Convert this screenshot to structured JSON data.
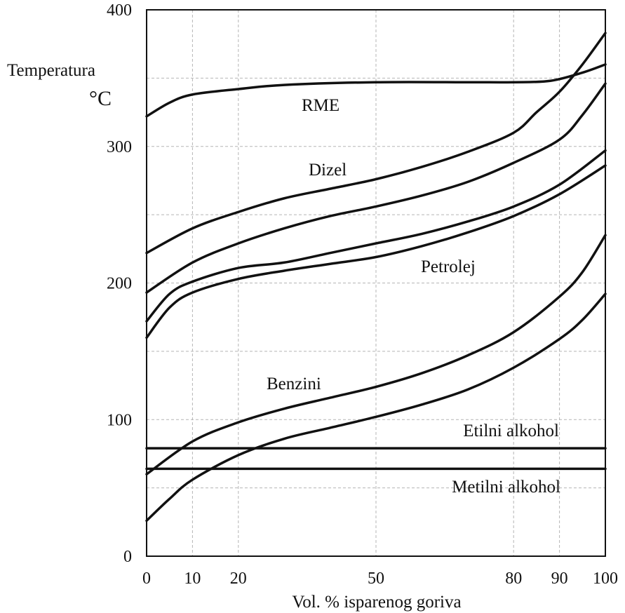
{
  "chart_data": {
    "type": "line",
    "title": "",
    "ylabel_line1": "Temperatura",
    "ylabel_line2": "°C",
    "xlabel": "Vol. % isparenog goriva",
    "xlim": [
      0,
      100
    ],
    "ylim": [
      0,
      400
    ],
    "x_ticks": [
      0,
      10,
      20,
      50,
      80,
      90,
      100
    ],
    "x_tick_labels": [
      "0",
      "10",
      "20",
      "50",
      "80",
      "90",
      "100"
    ],
    "y_ticks": [
      0,
      100,
      200,
      300,
      400
    ],
    "y_tick_labels": [
      "0",
      "100",
      "200",
      "300",
      "400"
    ],
    "grid": true,
    "x_grid": [
      10,
      20,
      50,
      80,
      90
    ],
    "y_grid": [
      50,
      100,
      150,
      200,
      250,
      300,
      350
    ],
    "series": [
      {
        "name": "RME",
        "x": [
          0,
          5,
          10,
          20,
          30,
          50,
          70,
          80,
          88,
          95,
          100
        ],
        "y": [
          322,
          332,
          338,
          342,
          345,
          347,
          347,
          347,
          348,
          354,
          360
        ]
      },
      {
        "x": [
          0,
          10,
          20,
          30,
          40,
          50,
          60,
          70,
          80,
          85,
          90,
          95,
          100
        ],
        "y": [
          222,
          240,
          252,
          262,
          269,
          276,
          285,
          296,
          310,
          325,
          340,
          360,
          383
        ]
      },
      {
        "name": "Dizel",
        "x": [
          0,
          10,
          20,
          30,
          40,
          50,
          60,
          70,
          80,
          90,
          95,
          100
        ],
        "y": [
          193,
          215,
          229,
          240,
          249,
          256,
          264,
          274,
          288,
          305,
          323,
          346
        ]
      },
      {
        "x": [
          0,
          5,
          10,
          20,
          30,
          40,
          50,
          60,
          70,
          80,
          90,
          100
        ],
        "y": [
          172,
          192,
          201,
          211,
          215,
          222,
          229,
          236,
          245,
          256,
          272,
          297
        ]
      },
      {
        "name": "Petrolej",
        "x": [
          0,
          5,
          10,
          20,
          30,
          40,
          50,
          60,
          70,
          80,
          90,
          100
        ],
        "y": [
          160,
          182,
          193,
          203,
          209,
          214,
          219,
          227,
          237,
          249,
          265,
          286
        ]
      },
      {
        "x": [
          0,
          10,
          20,
          30,
          40,
          50,
          60,
          70,
          80,
          90,
          95,
          100
        ],
        "y": [
          60,
          84,
          98,
          108,
          116,
          124,
          134,
          147,
          164,
          190,
          208,
          235
        ]
      },
      {
        "name": "Benzini",
        "x": [
          0,
          5,
          10,
          20,
          30,
          40,
          50,
          60,
          70,
          80,
          90,
          95,
          100
        ],
        "y": [
          26,
          42,
          56,
          74,
          86,
          94,
          102,
          111,
          122,
          138,
          159,
          173,
          192
        ]
      },
      {
        "name": "Etilni alkohol",
        "x": [
          0,
          100
        ],
        "y": [
          79,
          79
        ]
      },
      {
        "name": "Metilni alkohol",
        "x": [
          0,
          100
        ],
        "y": [
          64,
          64
        ]
      }
    ]
  }
}
